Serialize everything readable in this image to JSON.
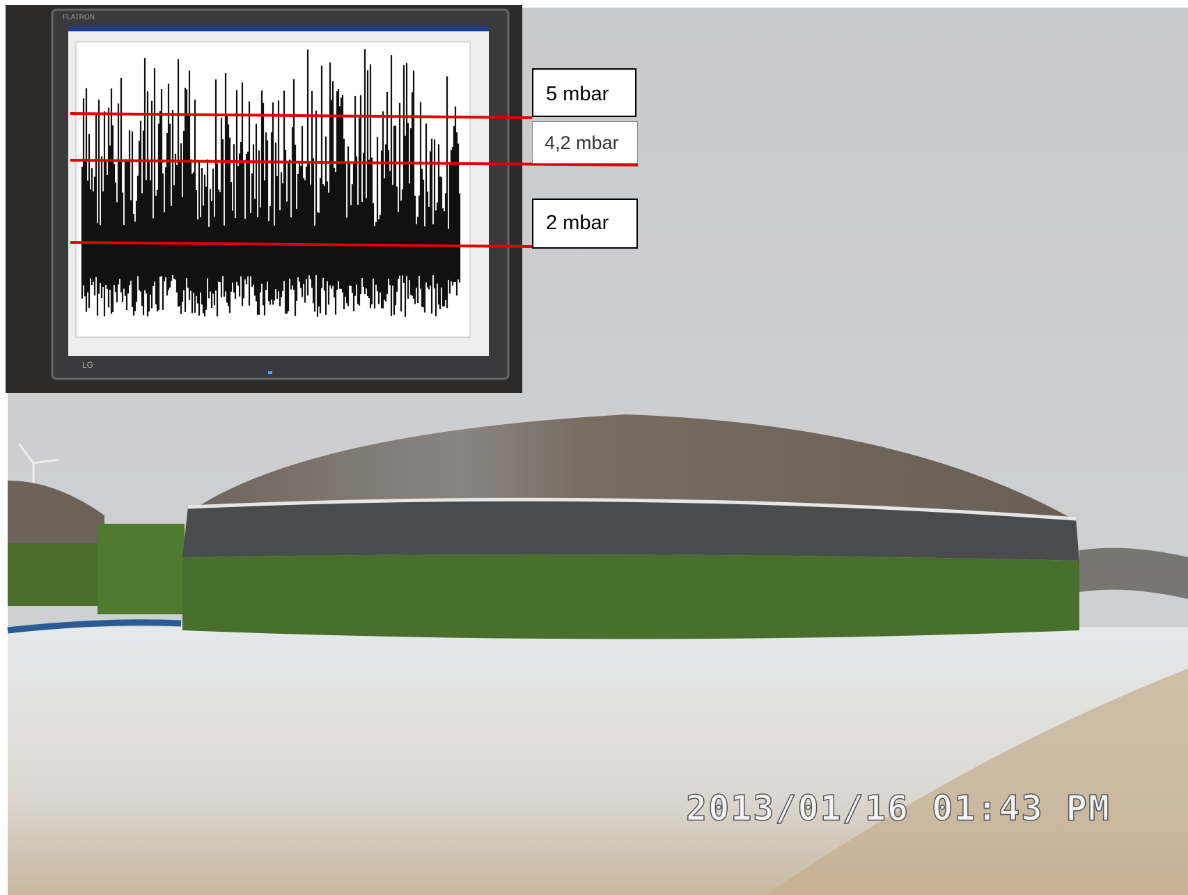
{
  "monitor": {
    "brand": "FLATRON",
    "logo": "LG"
  },
  "annotations": [
    "5 mbar",
    "4,2 mbar",
    "2 mbar"
  ],
  "timestamp": "2013/01/16   01:43   PM"
}
